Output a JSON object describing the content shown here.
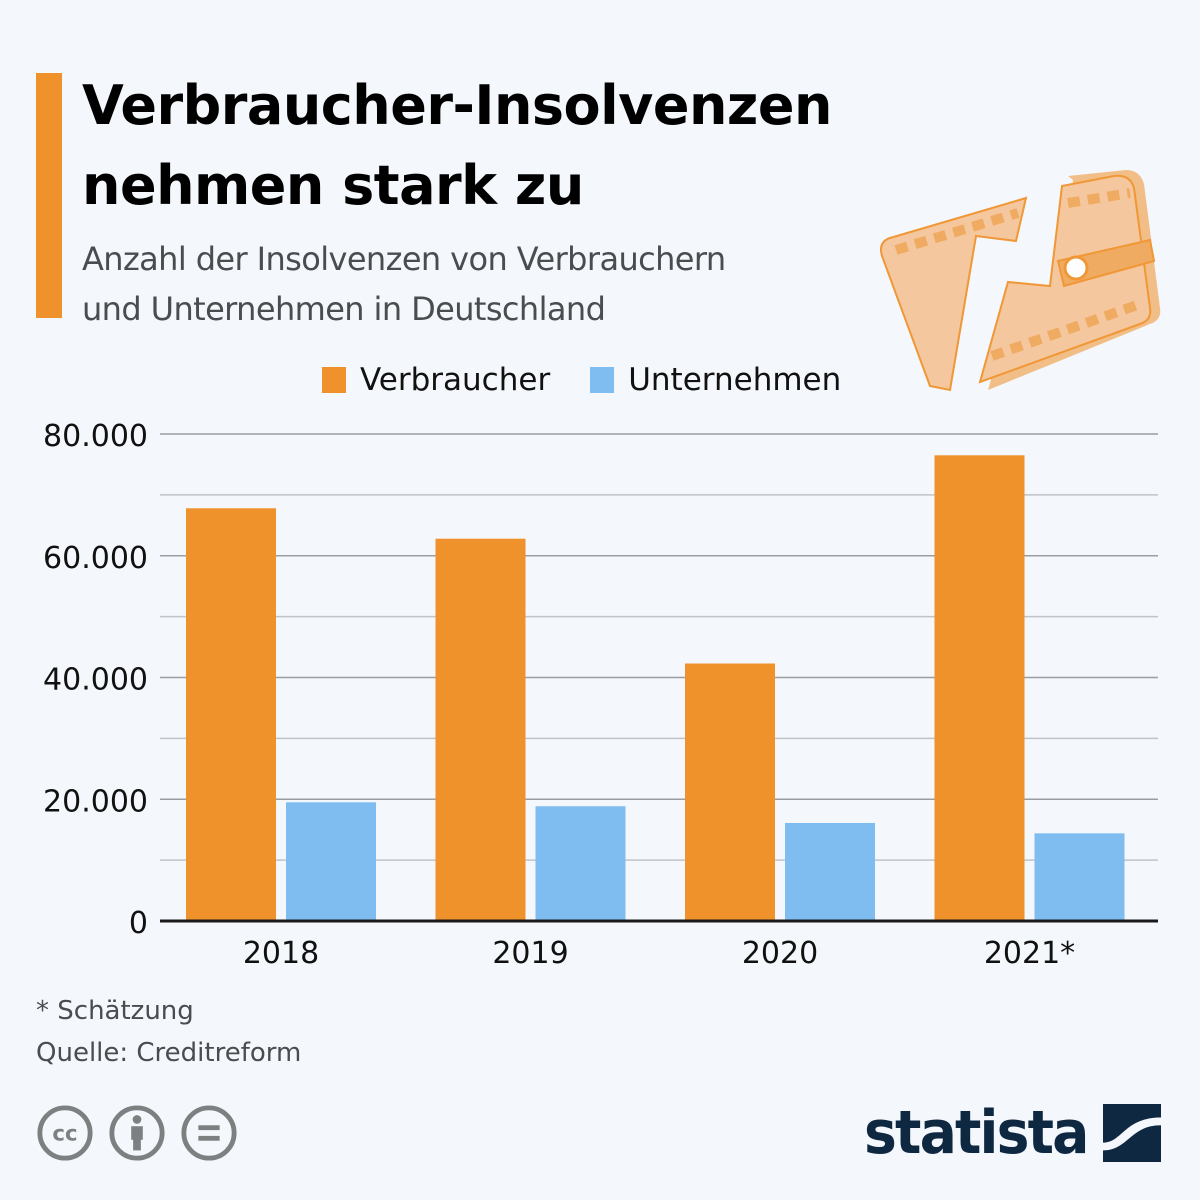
{
  "header": {
    "title_line1": "Verbraucher-Insolvenzen",
    "title_line2": "nehmen stark zu",
    "subtitle_line1": "Anzahl der Insolvenzen von Verbrauchern",
    "subtitle_line2": "und Unternehmen in Deutschland",
    "accent_color": "#f0922c",
    "illustration": "broken-wallet-icon"
  },
  "chart_data": {
    "type": "bar",
    "title": "Verbraucher-Insolvenzen nehmen stark zu",
    "subtitle": "Anzahl der Insolvenzen von Verbrauchern und Unternehmen in Deutschland",
    "xlabel": "",
    "ylabel": "",
    "categories": [
      "2018",
      "2019",
      "2020",
      "2021*"
    ],
    "series": [
      {
        "name": "Verbraucher",
        "color": "#f0922c",
        "values": [
          67800,
          62800,
          42300,
          76500
        ]
      },
      {
        "name": "Unternehmen",
        "color": "#7fbdf1",
        "values": [
          19500,
          18850,
          16100,
          14400
        ]
      }
    ],
    "ylim": [
      0,
      80000
    ],
    "yticks": [
      0,
      20000,
      40000,
      60000,
      80000
    ],
    "ytick_labels": [
      "0",
      "20.000",
      "40.000",
      "60.000",
      "80.000"
    ],
    "minor_gridlines": [
      10000,
      30000,
      50000,
      70000
    ],
    "grid": true,
    "legend_position": "top"
  },
  "footer": {
    "note": "* Schätzung",
    "source": "Quelle: Creditreform",
    "license_icons": [
      "cc-icon",
      "attribution-icon",
      "no-derivatives-icon"
    ],
    "brand": "statista"
  }
}
